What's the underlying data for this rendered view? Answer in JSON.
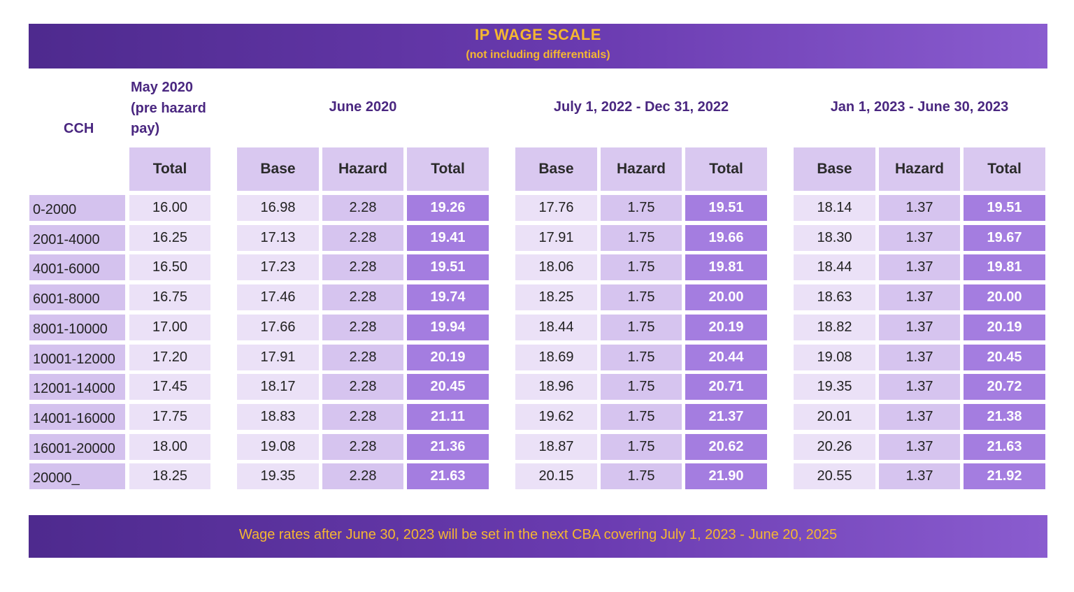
{
  "title": "IP WAGE SCALE",
  "subtitle": "(not including differentials)",
  "footer": "Wage rates after June 30, 2023 will be set in the next CBA covering July 1, 2023 - June 20, 2025",
  "headers": {
    "cch": "CCH",
    "may_line1": "May 2020",
    "may_line2": "(pre hazard",
    "may_line3": "pay)",
    "period1": "June 2020",
    "period2": "July 1, 2022 - Dec 31, 2022",
    "period3": "Jan 1, 2023 - June 30, 2023",
    "total": "Total",
    "base": "Base",
    "hazard": "Hazard"
  },
  "colors": {
    "banner_start": "#4e2a8e",
    "banner_end": "#8a5ccf",
    "banner_text": "#f5b731",
    "heading_text": "#4a2780",
    "total_cell": "#a47de0"
  },
  "rows": [
    {
      "cch": "0-2000",
      "may": "16.00",
      "p1": [
        "16.98",
        "2.28",
        "19.26"
      ],
      "p2": [
        "17.76",
        "1.75",
        "19.51"
      ],
      "p3": [
        "18.14",
        "1.37",
        "19.51"
      ]
    },
    {
      "cch": "2001-4000",
      "may": "16.25",
      "p1": [
        "17.13",
        "2.28",
        "19.41"
      ],
      "p2": [
        "17.91",
        "1.75",
        "19.66"
      ],
      "p3": [
        "18.30",
        "1.37",
        "19.67"
      ]
    },
    {
      "cch": "4001-6000",
      "may": "16.50",
      "p1": [
        "17.23",
        "2.28",
        "19.51"
      ],
      "p2": [
        "18.06",
        "1.75",
        "19.81"
      ],
      "p3": [
        "18.44",
        "1.37",
        "19.81"
      ]
    },
    {
      "cch": "6001-8000",
      "may": "16.75",
      "p1": [
        "17.46",
        "2.28",
        "19.74"
      ],
      "p2": [
        "18.25",
        "1.75",
        "20.00"
      ],
      "p3": [
        "18.63",
        "1.37",
        "20.00"
      ]
    },
    {
      "cch": "8001-10000",
      "may": "17.00",
      "p1": [
        "17.66",
        "2.28",
        "19.94"
      ],
      "p2": [
        "18.44",
        "1.75",
        "20.19"
      ],
      "p3": [
        "18.82",
        "1.37",
        "20.19"
      ]
    },
    {
      "cch": "10001-12000",
      "may": "17.20",
      "p1": [
        "17.91",
        "2.28",
        "20.19"
      ],
      "p2": [
        "18.69",
        "1.75",
        "20.44"
      ],
      "p3": [
        "19.08",
        "1.37",
        "20.45"
      ]
    },
    {
      "cch": "12001-14000",
      "may": "17.45",
      "p1": [
        "18.17",
        "2.28",
        "20.45"
      ],
      "p2": [
        "18.96",
        "1.75",
        "20.71"
      ],
      "p3": [
        "19.35",
        "1.37",
        "20.72"
      ]
    },
    {
      "cch": "14001-16000",
      "may": "17.75",
      "p1": [
        "18.83",
        "2.28",
        "21.11"
      ],
      "p2": [
        "19.62",
        "1.75",
        "21.37"
      ],
      "p3": [
        "20.01",
        "1.37",
        "21.38"
      ]
    },
    {
      "cch": "16001-20000",
      "may": "18.00",
      "p1": [
        "19.08",
        "2.28",
        "21.36"
      ],
      "p2": [
        "18.87",
        "1.75",
        "20.62"
      ],
      "p3": [
        "20.26",
        "1.37",
        "21.63"
      ]
    },
    {
      "cch": "20000_",
      "may": "18.25",
      "p1": [
        "19.35",
        "2.28",
        "21.63"
      ],
      "p2": [
        "20.15",
        "1.75",
        "21.90"
      ],
      "p3": [
        "20.55",
        "1.37",
        "21.92"
      ]
    }
  ]
}
